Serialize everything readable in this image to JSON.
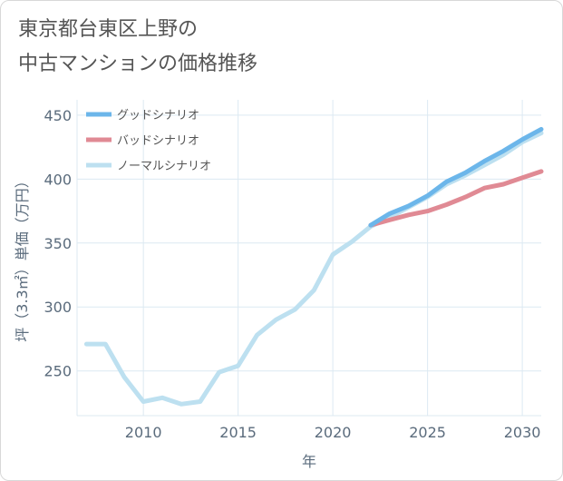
{
  "title_lines": [
    "東京都台東区上野の",
    "中古マンションの価格推移"
  ],
  "colors": {
    "good": "#6cb6ea",
    "bad": "#e08a94",
    "normal": "#bde0f0",
    "grid": "#dce9f2",
    "axis": "#5a6b7c"
  },
  "chart_data": {
    "type": "line",
    "title": "東京都台東区上野の中古マンションの価格推移",
    "xlabel": "年",
    "ylabel": "坪（3.3㎡）単価（万円）",
    "xlim": [
      2006.5,
      2031
    ],
    "ylim": [
      215,
      462
    ],
    "x_ticks": [
      2010,
      2015,
      2020,
      2025,
      2030
    ],
    "y_ticks": [
      250,
      300,
      350,
      400,
      450
    ],
    "grid": true,
    "legend_position": "top-left",
    "series": [
      {
        "name": "グッドシナリオ",
        "color": "#6cb6ea",
        "x": [
          2022,
          2023,
          2024,
          2025,
          2026,
          2027,
          2028,
          2029,
          2030,
          2031
        ],
        "y": [
          364,
          373,
          379,
          387,
          398,
          405,
          414,
          422,
          431,
          439
        ]
      },
      {
        "name": "バッドシナリオ",
        "color": "#e08a94",
        "x": [
          2022,
          2023,
          2024,
          2025,
          2026,
          2027,
          2028,
          2029,
          2030,
          2031
        ],
        "y": [
          364,
          368,
          372,
          375,
          380,
          386,
          393,
          396,
          401,
          406
        ]
      },
      {
        "name": "ノーマルシナリオ",
        "color": "#bde0f0",
        "x": [
          2007,
          2008,
          2009,
          2010,
          2011,
          2012,
          2013,
          2014,
          2015,
          2016,
          2017,
          2018,
          2019,
          2020,
          2021,
          2022,
          2023,
          2024,
          2025,
          2026,
          2027,
          2028,
          2029,
          2030,
          2031
        ],
        "y": [
          271,
          271,
          245,
          226,
          229,
          224,
          226,
          249,
          254,
          278,
          290,
          298,
          313,
          341,
          351,
          363,
          370,
          378,
          386,
          396,
          403,
          411,
          419,
          429,
          436
        ]
      }
    ]
  }
}
